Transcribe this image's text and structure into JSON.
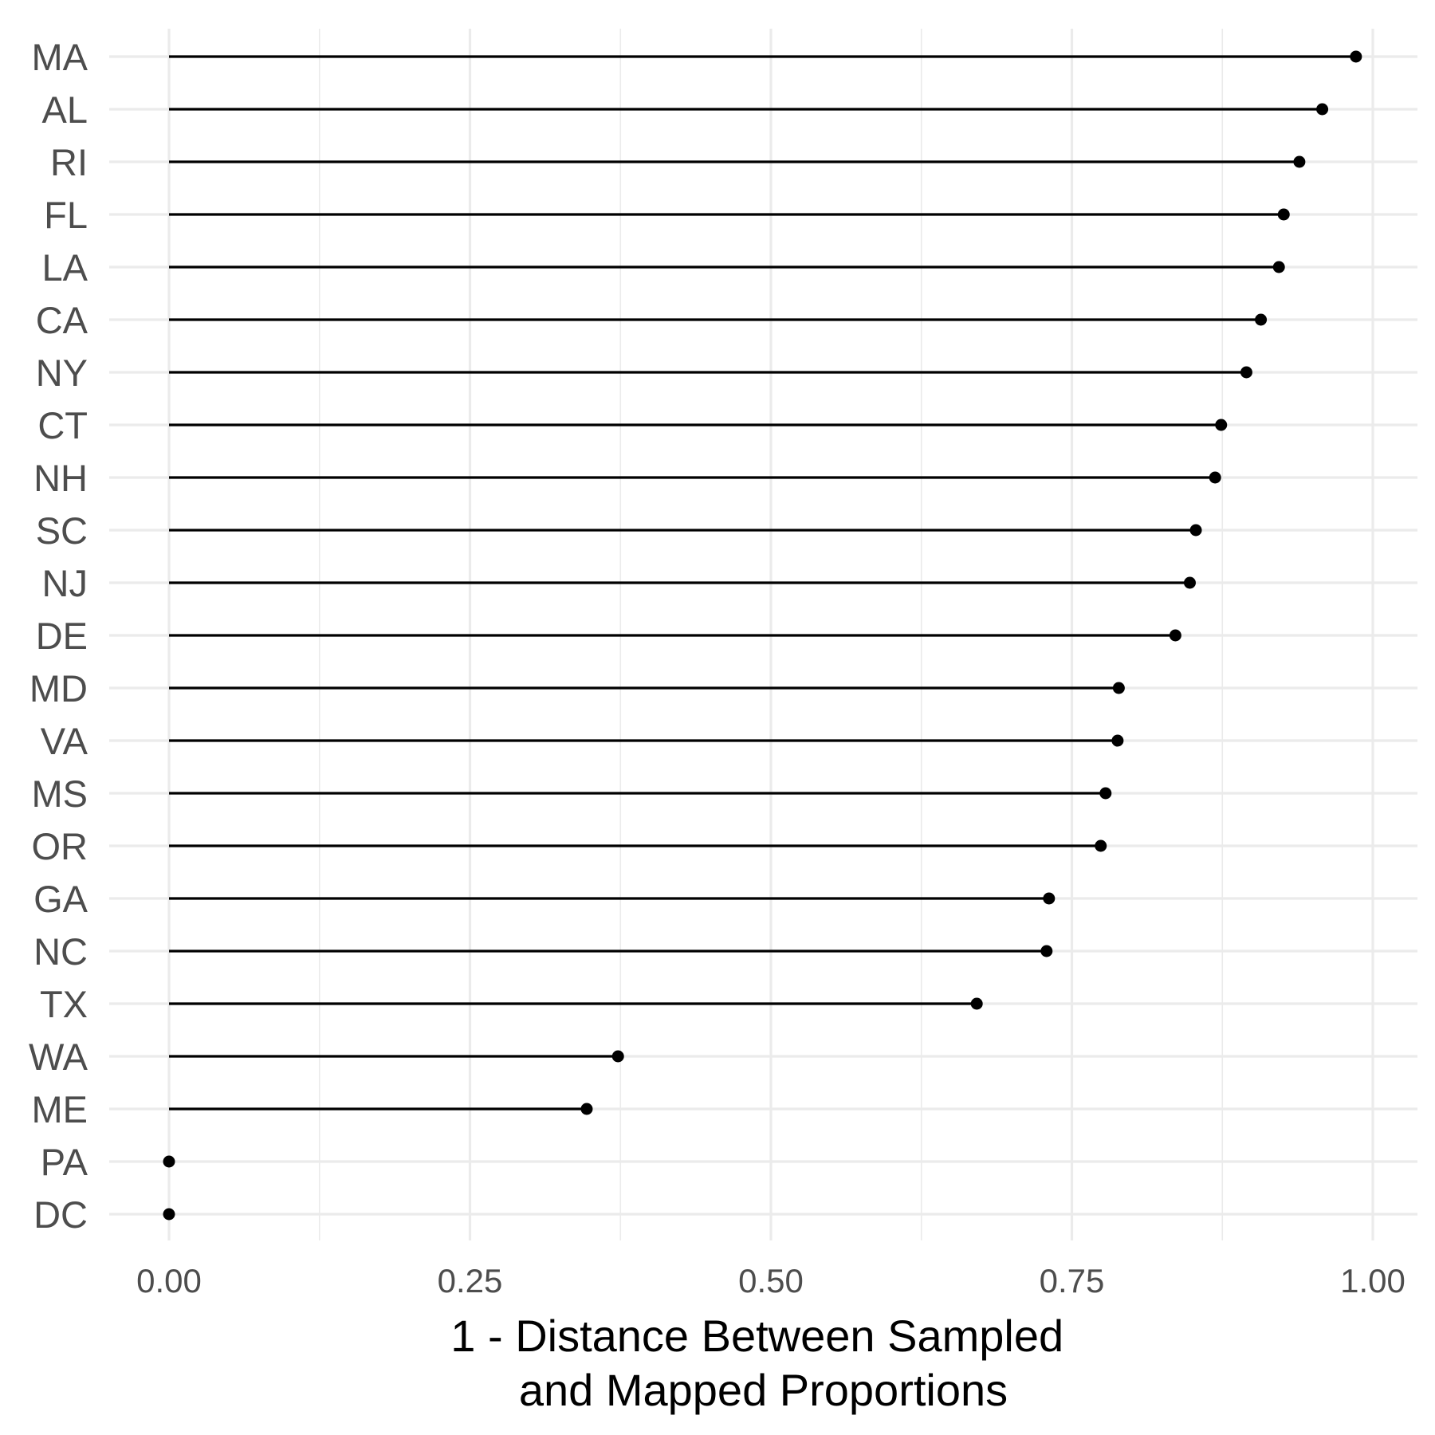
{
  "chart_data": {
    "type": "lollipop",
    "xlabel": [
      "1 - Distance Between Sampled",
      "and Mapped Proportions"
    ],
    "ylabel": "",
    "xlim": [
      -0.05,
      1.04
    ],
    "x_ticks": [
      0.0,
      0.25,
      0.5,
      0.75,
      1.0
    ],
    "x_tick_labels": [
      "0.00",
      "0.25",
      "0.50",
      "0.75",
      "1.00"
    ],
    "x_minor_ticks": [
      0.125,
      0.375,
      0.625,
      0.875
    ],
    "grid": true,
    "legend": "none",
    "colors": {
      "mark": "#000000",
      "grid": "#ebebeb",
      "tick_text": "#4d4d4d"
    },
    "categories": [
      "MA",
      "AL",
      "RI",
      "FL",
      "LA",
      "CA",
      "NY",
      "CT",
      "NH",
      "SC",
      "NJ",
      "DE",
      "MD",
      "VA",
      "MS",
      "OR",
      "GA",
      "NC",
      "TX",
      "WA",
      "ME",
      "PA",
      "DC"
    ],
    "values": [
      0.986,
      0.958,
      0.939,
      0.926,
      0.922,
      0.907,
      0.895,
      0.874,
      0.869,
      0.853,
      0.848,
      0.836,
      0.789,
      0.788,
      0.778,
      0.774,
      0.731,
      0.729,
      0.671,
      0.373,
      0.347,
      0.0,
      0.0
    ]
  }
}
